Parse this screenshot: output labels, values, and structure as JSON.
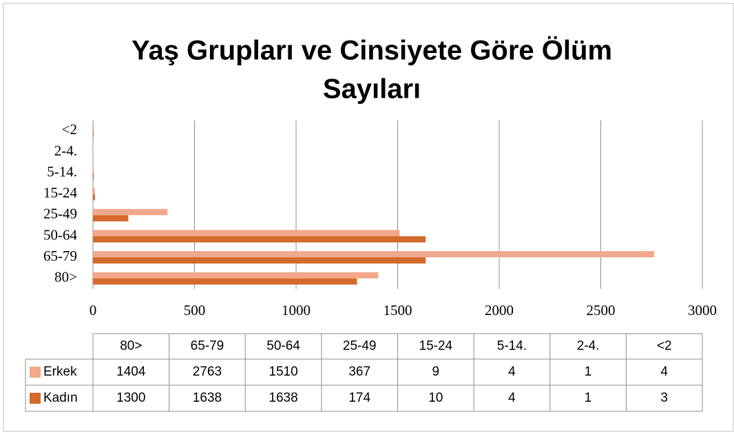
{
  "chart_data": {
    "type": "bar",
    "orientation": "horizontal",
    "title": "Yaş Grupları ve Cinsiyete Göre Ölüm",
    "subtitle": "Sayıları",
    "categories": [
      "80>",
      "65-79",
      "50-64",
      "25-49",
      "15-24",
      "5-14.",
      "2-4.",
      "<2"
    ],
    "series": [
      {
        "name": "Erkek",
        "color": "#f2a88a",
        "values": [
          1404,
          2763,
          1510,
          367,
          9,
          4,
          1,
          4
        ]
      },
      {
        "name": "Kadın",
        "color": "#d4692c",
        "values": [
          1300,
          1638,
          1638,
          174,
          10,
          4,
          1,
          3
        ]
      }
    ],
    "xlim": [
      0,
      3000
    ],
    "xticks": [
      0,
      500,
      1000,
      1500,
      2000,
      2500,
      3000
    ],
    "grid": true
  }
}
